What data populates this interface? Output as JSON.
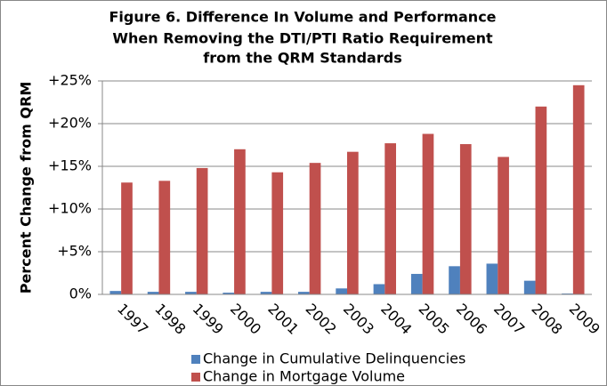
{
  "chart_data": {
    "type": "bar",
    "title": [
      "Figure 6. Difference In Volume and Performance",
      "When Removing the DTI/PTI Ratio Requirement",
      "from the QRM Standards"
    ],
    "y_label": "Percent Change from QRM",
    "categories": [
      "1997",
      "1998",
      "1999",
      "2000",
      "2001",
      "2002",
      "2003",
      "2004",
      "2005",
      "2006",
      "2007",
      "2008",
      "2009"
    ],
    "series": [
      {
        "name": "Change in Cumulative Delinquencies",
        "color": "#4f81bd",
        "values": [
          0.4,
          0.3,
          0.3,
          0.2,
          0.3,
          0.3,
          0.7,
          1.2,
          2.4,
          3.3,
          3.6,
          1.6,
          0.1
        ]
      },
      {
        "name": "Change in Mortgage Volume",
        "color": "#c0504d",
        "values": [
          13.1,
          13.3,
          14.8,
          17.0,
          14.3,
          15.4,
          16.7,
          17.7,
          18.8,
          17.6,
          16.1,
          22.0,
          24.5
        ]
      }
    ],
    "ylim": [
      0,
      25
    ],
    "yticks": [
      {
        "value": 0,
        "label": "0%"
      },
      {
        "value": 5,
        "label": "+5%"
      },
      {
        "value": 10,
        "label": "+10%"
      },
      {
        "value": 15,
        "label": "+15%"
      },
      {
        "value": 20,
        "label": "+20%"
      },
      {
        "value": 25,
        "label": "+25%"
      }
    ],
    "grid": true,
    "legend": "bottom"
  }
}
